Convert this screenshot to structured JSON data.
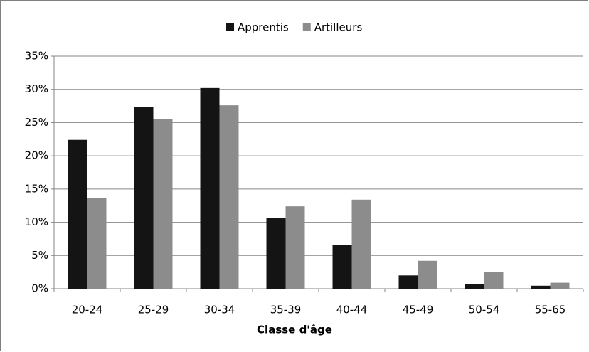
{
  "chart_data": {
    "type": "bar",
    "x_label": "Classe d'âge",
    "categories": [
      "20-24",
      "25-29",
      "30-34",
      "35-39",
      "40-44",
      "45-49",
      "50-54",
      "55-65"
    ],
    "series": [
      {
        "name": "Apprentis",
        "color": "#141414",
        "values": [
          22.4,
          27.3,
          30.2,
          10.6,
          6.6,
          2.0,
          0.75,
          0.45
        ]
      },
      {
        "name": "Artilleurs",
        "color": "#8c8c8c",
        "values": [
          13.7,
          25.5,
          27.6,
          12.4,
          13.4,
          4.2,
          2.5,
          0.9
        ]
      }
    ],
    "ylim": [
      0,
      35
    ],
    "yticks": [
      {
        "value": 0,
        "label": "0%"
      },
      {
        "value": 5,
        "label": "5%"
      },
      {
        "value": 10,
        "label": "10%"
      },
      {
        "value": 15,
        "label": "15%"
      },
      {
        "value": 20,
        "label": "20%"
      },
      {
        "value": 25,
        "label": "25%"
      },
      {
        "value": 30,
        "label": "30%"
      },
      {
        "value": 35,
        "label": "35%"
      }
    ],
    "grid": true,
    "legend": "top"
  }
}
